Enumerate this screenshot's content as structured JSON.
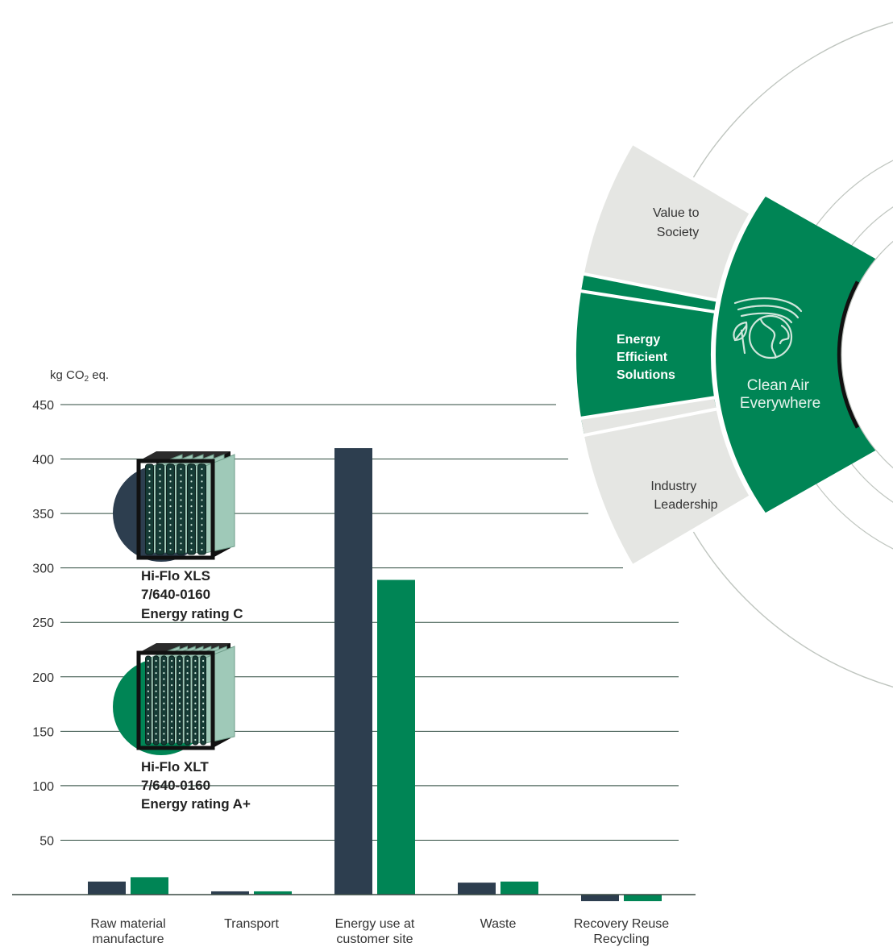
{
  "colors": {
    "dark": "#2d3e4f",
    "green": "#008555",
    "light_gray": "#e5e6e3",
    "line_gray": "#bfc5bf",
    "grid": "#2d4a3e",
    "text": "#333333"
  },
  "wheel": {
    "center_label_line1": "Clean Air",
    "center_label_line2": "Everywhere",
    "center_icon": "globe-wind-leaf-icon",
    "segments": [
      {
        "line1": "Value to",
        "line2": "Society"
      },
      {
        "line1": "Energy",
        "line2": "Efficient",
        "line3": "Solutions"
      },
      {
        "line1": "Industry",
        "line2": "Leadership"
      }
    ]
  },
  "products": [
    {
      "line1": "Hi-Flo XLS",
      "line2": "7/640-0160",
      "line3": "Energy rating C",
      "color": "#2d3e4f",
      "icon": "pocket-filter-icon"
    },
    {
      "line1": "Hi-Flo XLT",
      "line2": "7/640-0160",
      "line3": "Energy rating A+",
      "color": "#008555",
      "icon": "pocket-filter-icon"
    }
  ],
  "chart_data": {
    "type": "bar",
    "ylabel_main": "kg CO",
    "ylabel_sub": "2",
    "ylabel_tail": " eq.",
    "ylim": [
      0,
      450
    ],
    "yticks": [
      50,
      100,
      150,
      200,
      250,
      300,
      350,
      400,
      450
    ],
    "categories": [
      [
        "Raw material",
        "manufacture"
      ],
      [
        "Transport"
      ],
      [
        "Energy use at",
        "customer site"
      ],
      [
        "Waste"
      ],
      [
        "Recovery Reuse",
        "Recycling"
      ]
    ],
    "series": [
      {
        "name": "Hi-Flo XLS 7/640-0160 Energy rating C",
        "values": [
          12,
          3,
          410,
          11,
          -6
        ]
      },
      {
        "name": "Hi-Flo XLT 7/640-0160 Energy rating A+",
        "values": [
          16,
          3,
          289,
          12,
          -6
        ]
      }
    ]
  }
}
